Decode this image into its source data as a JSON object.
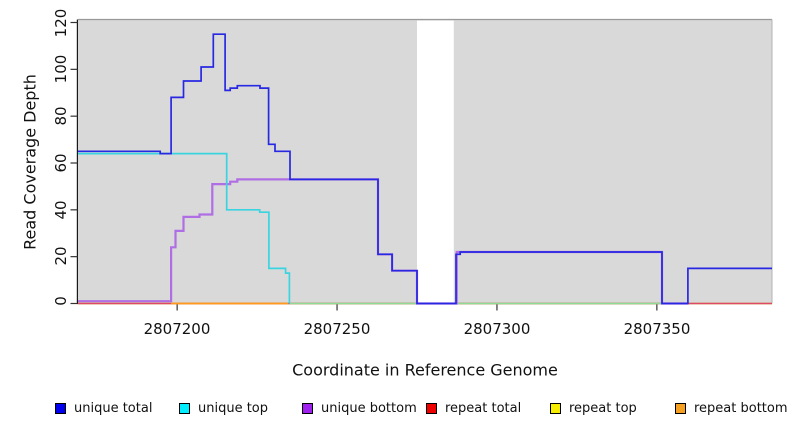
{
  "chart_data": {
    "type": "line",
    "subtype": "step-coverage",
    "title": "",
    "xlabel": "Coordinate in Reference Genome",
    "ylabel": "Read Coverage Depth",
    "xlim": [
      2807169,
      2807386
    ],
    "ylim": [
      0,
      120
    ],
    "x_ticks": [
      2807200,
      2807250,
      2807300,
      2807350
    ],
    "y_ticks": [
      0,
      20,
      40,
      60,
      80,
      100,
      120
    ],
    "grid": false,
    "plot_bg_color": "#d9d9d9",
    "gap_region": {
      "x_start": 2807275,
      "x_end": 2807286.5,
      "color": "#ffffff"
    },
    "series": [
      {
        "name": "repeat top",
        "color": "#eeee22",
        "width": 1.6,
        "points": [
          [
            2807169,
            0
          ],
          [
            2807386,
            0
          ]
        ]
      },
      {
        "name": "repeat total",
        "color": "#e04868",
        "width": 1.6,
        "points": [
          [
            2807169,
            0
          ],
          [
            2807386,
            0
          ]
        ]
      },
      {
        "name": "baseline green",
        "color": "#8fd998",
        "width": 1.6,
        "points": [
          [
            2807235.2,
            0
          ],
          [
            2807359.7,
            0
          ]
        ]
      },
      {
        "name": "repeat bottom",
        "color": "#ff9a1e",
        "width": 1.8,
        "points": [
          [
            2807198.1,
            0
          ],
          [
            2807234.7,
            0
          ]
        ]
      },
      {
        "name": "unique bottom",
        "color": "#b06ee4",
        "width": 2.2,
        "points": [
          [
            2807169,
            1
          ],
          [
            2807198.1,
            24
          ],
          [
            2807199.5,
            31
          ],
          [
            2807202,
            37
          ],
          [
            2807207,
            38
          ],
          [
            2807211,
            51
          ],
          [
            2807216.6,
            52
          ],
          [
            2807218.8,
            53
          ],
          [
            2807262.8,
            21
          ],
          [
            2807267.2,
            14
          ],
          [
            2807275,
            0
          ],
          [
            2807287.4,
            22
          ],
          [
            2807351.6,
            0
          ],
          [
            2807359.7,
            0
          ]
        ]
      },
      {
        "name": "unique top",
        "color": "#3ad4e0",
        "width": 1.7,
        "points": [
          [
            2807169,
            64
          ],
          [
            2807215.5,
            40
          ],
          [
            2807225.8,
            39
          ],
          [
            2807228.7,
            15
          ],
          [
            2807233.9,
            13
          ],
          [
            2807235.1,
            0
          ]
        ]
      },
      {
        "name": "unique total",
        "color": "#2828e2",
        "width": 1.7,
        "points": [
          [
            2807169,
            65
          ],
          [
            2807194.7,
            64
          ],
          [
            2807198.1,
            88
          ],
          [
            2807202,
            95
          ],
          [
            2807207.5,
            101
          ],
          [
            2807211.3,
            115
          ],
          [
            2807215,
            91
          ],
          [
            2807216.6,
            92
          ],
          [
            2807218.8,
            93
          ],
          [
            2807225.9,
            92
          ],
          [
            2807228.6,
            68
          ],
          [
            2807230.6,
            65
          ],
          [
            2807235.3,
            53
          ],
          [
            2807262.8,
            21
          ],
          [
            2807267.2,
            14
          ],
          [
            2807275,
            0
          ],
          [
            2807287.2,
            21
          ],
          [
            2807288.5,
            22
          ],
          [
            2807351.6,
            0
          ],
          [
            2807359.7,
            15
          ],
          [
            2807386,
            15
          ]
        ]
      }
    ]
  },
  "legend": {
    "position": "bottom",
    "items": [
      {
        "label": "unique total",
        "color": "#0000ee"
      },
      {
        "label": "unique top",
        "color": "#00eeff"
      },
      {
        "label": "unique bottom",
        "color": "#a020f0"
      },
      {
        "label": "repeat total",
        "color": "#ee0000"
      },
      {
        "label": "repeat top",
        "color": "#f5ee00"
      },
      {
        "label": "repeat bottom",
        "color": "#f5a020"
      }
    ]
  },
  "axis_colors": {
    "axis": "#1a1a1a",
    "tick": "#333333",
    "box_top": "#999999",
    "box_right": "#b3b3b3"
  }
}
